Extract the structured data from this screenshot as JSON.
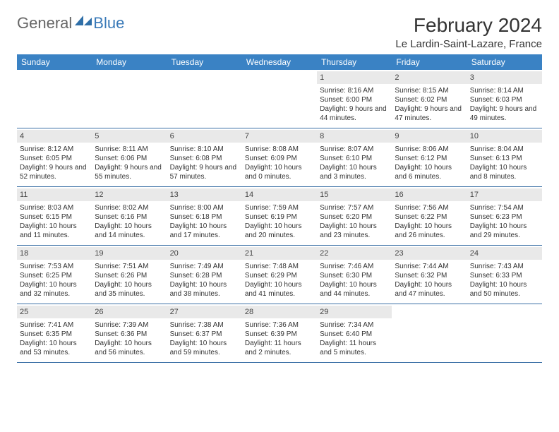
{
  "logo": {
    "part1": "General",
    "part2": "Blue"
  },
  "month_title": "February 2024",
  "location": "Le Lardin-Saint-Lazare, France",
  "colors": {
    "header_bg": "#3a82c4",
    "daynum_bg": "#e9e9e9",
    "rule": "#3a6fa5",
    "logo_blue": "#3a7ab8"
  },
  "day_names": [
    "Sunday",
    "Monday",
    "Tuesday",
    "Wednesday",
    "Thursday",
    "Friday",
    "Saturday"
  ],
  "weeks": [
    [
      {
        "n": "",
        "sr": "",
        "ss": "",
        "dl": ""
      },
      {
        "n": "",
        "sr": "",
        "ss": "",
        "dl": ""
      },
      {
        "n": "",
        "sr": "",
        "ss": "",
        "dl": ""
      },
      {
        "n": "",
        "sr": "",
        "ss": "",
        "dl": ""
      },
      {
        "n": "1",
        "sr": "Sunrise: 8:16 AM",
        "ss": "Sunset: 6:00 PM",
        "dl": "Daylight: 9 hours and 44 minutes."
      },
      {
        "n": "2",
        "sr": "Sunrise: 8:15 AM",
        "ss": "Sunset: 6:02 PM",
        "dl": "Daylight: 9 hours and 47 minutes."
      },
      {
        "n": "3",
        "sr": "Sunrise: 8:14 AM",
        "ss": "Sunset: 6:03 PM",
        "dl": "Daylight: 9 hours and 49 minutes."
      }
    ],
    [
      {
        "n": "4",
        "sr": "Sunrise: 8:12 AM",
        "ss": "Sunset: 6:05 PM",
        "dl": "Daylight: 9 hours and 52 minutes."
      },
      {
        "n": "5",
        "sr": "Sunrise: 8:11 AM",
        "ss": "Sunset: 6:06 PM",
        "dl": "Daylight: 9 hours and 55 minutes."
      },
      {
        "n": "6",
        "sr": "Sunrise: 8:10 AM",
        "ss": "Sunset: 6:08 PM",
        "dl": "Daylight: 9 hours and 57 minutes."
      },
      {
        "n": "7",
        "sr": "Sunrise: 8:08 AM",
        "ss": "Sunset: 6:09 PM",
        "dl": "Daylight: 10 hours and 0 minutes."
      },
      {
        "n": "8",
        "sr": "Sunrise: 8:07 AM",
        "ss": "Sunset: 6:10 PM",
        "dl": "Daylight: 10 hours and 3 minutes."
      },
      {
        "n": "9",
        "sr": "Sunrise: 8:06 AM",
        "ss": "Sunset: 6:12 PM",
        "dl": "Daylight: 10 hours and 6 minutes."
      },
      {
        "n": "10",
        "sr": "Sunrise: 8:04 AM",
        "ss": "Sunset: 6:13 PM",
        "dl": "Daylight: 10 hours and 8 minutes."
      }
    ],
    [
      {
        "n": "11",
        "sr": "Sunrise: 8:03 AM",
        "ss": "Sunset: 6:15 PM",
        "dl": "Daylight: 10 hours and 11 minutes."
      },
      {
        "n": "12",
        "sr": "Sunrise: 8:02 AM",
        "ss": "Sunset: 6:16 PM",
        "dl": "Daylight: 10 hours and 14 minutes."
      },
      {
        "n": "13",
        "sr": "Sunrise: 8:00 AM",
        "ss": "Sunset: 6:18 PM",
        "dl": "Daylight: 10 hours and 17 minutes."
      },
      {
        "n": "14",
        "sr": "Sunrise: 7:59 AM",
        "ss": "Sunset: 6:19 PM",
        "dl": "Daylight: 10 hours and 20 minutes."
      },
      {
        "n": "15",
        "sr": "Sunrise: 7:57 AM",
        "ss": "Sunset: 6:20 PM",
        "dl": "Daylight: 10 hours and 23 minutes."
      },
      {
        "n": "16",
        "sr": "Sunrise: 7:56 AM",
        "ss": "Sunset: 6:22 PM",
        "dl": "Daylight: 10 hours and 26 minutes."
      },
      {
        "n": "17",
        "sr": "Sunrise: 7:54 AM",
        "ss": "Sunset: 6:23 PM",
        "dl": "Daylight: 10 hours and 29 minutes."
      }
    ],
    [
      {
        "n": "18",
        "sr": "Sunrise: 7:53 AM",
        "ss": "Sunset: 6:25 PM",
        "dl": "Daylight: 10 hours and 32 minutes."
      },
      {
        "n": "19",
        "sr": "Sunrise: 7:51 AM",
        "ss": "Sunset: 6:26 PM",
        "dl": "Daylight: 10 hours and 35 minutes."
      },
      {
        "n": "20",
        "sr": "Sunrise: 7:49 AM",
        "ss": "Sunset: 6:28 PM",
        "dl": "Daylight: 10 hours and 38 minutes."
      },
      {
        "n": "21",
        "sr": "Sunrise: 7:48 AM",
        "ss": "Sunset: 6:29 PM",
        "dl": "Daylight: 10 hours and 41 minutes."
      },
      {
        "n": "22",
        "sr": "Sunrise: 7:46 AM",
        "ss": "Sunset: 6:30 PM",
        "dl": "Daylight: 10 hours and 44 minutes."
      },
      {
        "n": "23",
        "sr": "Sunrise: 7:44 AM",
        "ss": "Sunset: 6:32 PM",
        "dl": "Daylight: 10 hours and 47 minutes."
      },
      {
        "n": "24",
        "sr": "Sunrise: 7:43 AM",
        "ss": "Sunset: 6:33 PM",
        "dl": "Daylight: 10 hours and 50 minutes."
      }
    ],
    [
      {
        "n": "25",
        "sr": "Sunrise: 7:41 AM",
        "ss": "Sunset: 6:35 PM",
        "dl": "Daylight: 10 hours and 53 minutes."
      },
      {
        "n": "26",
        "sr": "Sunrise: 7:39 AM",
        "ss": "Sunset: 6:36 PM",
        "dl": "Daylight: 10 hours and 56 minutes."
      },
      {
        "n": "27",
        "sr": "Sunrise: 7:38 AM",
        "ss": "Sunset: 6:37 PM",
        "dl": "Daylight: 10 hours and 59 minutes."
      },
      {
        "n": "28",
        "sr": "Sunrise: 7:36 AM",
        "ss": "Sunset: 6:39 PM",
        "dl": "Daylight: 11 hours and 2 minutes."
      },
      {
        "n": "29",
        "sr": "Sunrise: 7:34 AM",
        "ss": "Sunset: 6:40 PM",
        "dl": "Daylight: 11 hours and 5 minutes."
      },
      {
        "n": "",
        "sr": "",
        "ss": "",
        "dl": ""
      },
      {
        "n": "",
        "sr": "",
        "ss": "",
        "dl": ""
      }
    ]
  ]
}
